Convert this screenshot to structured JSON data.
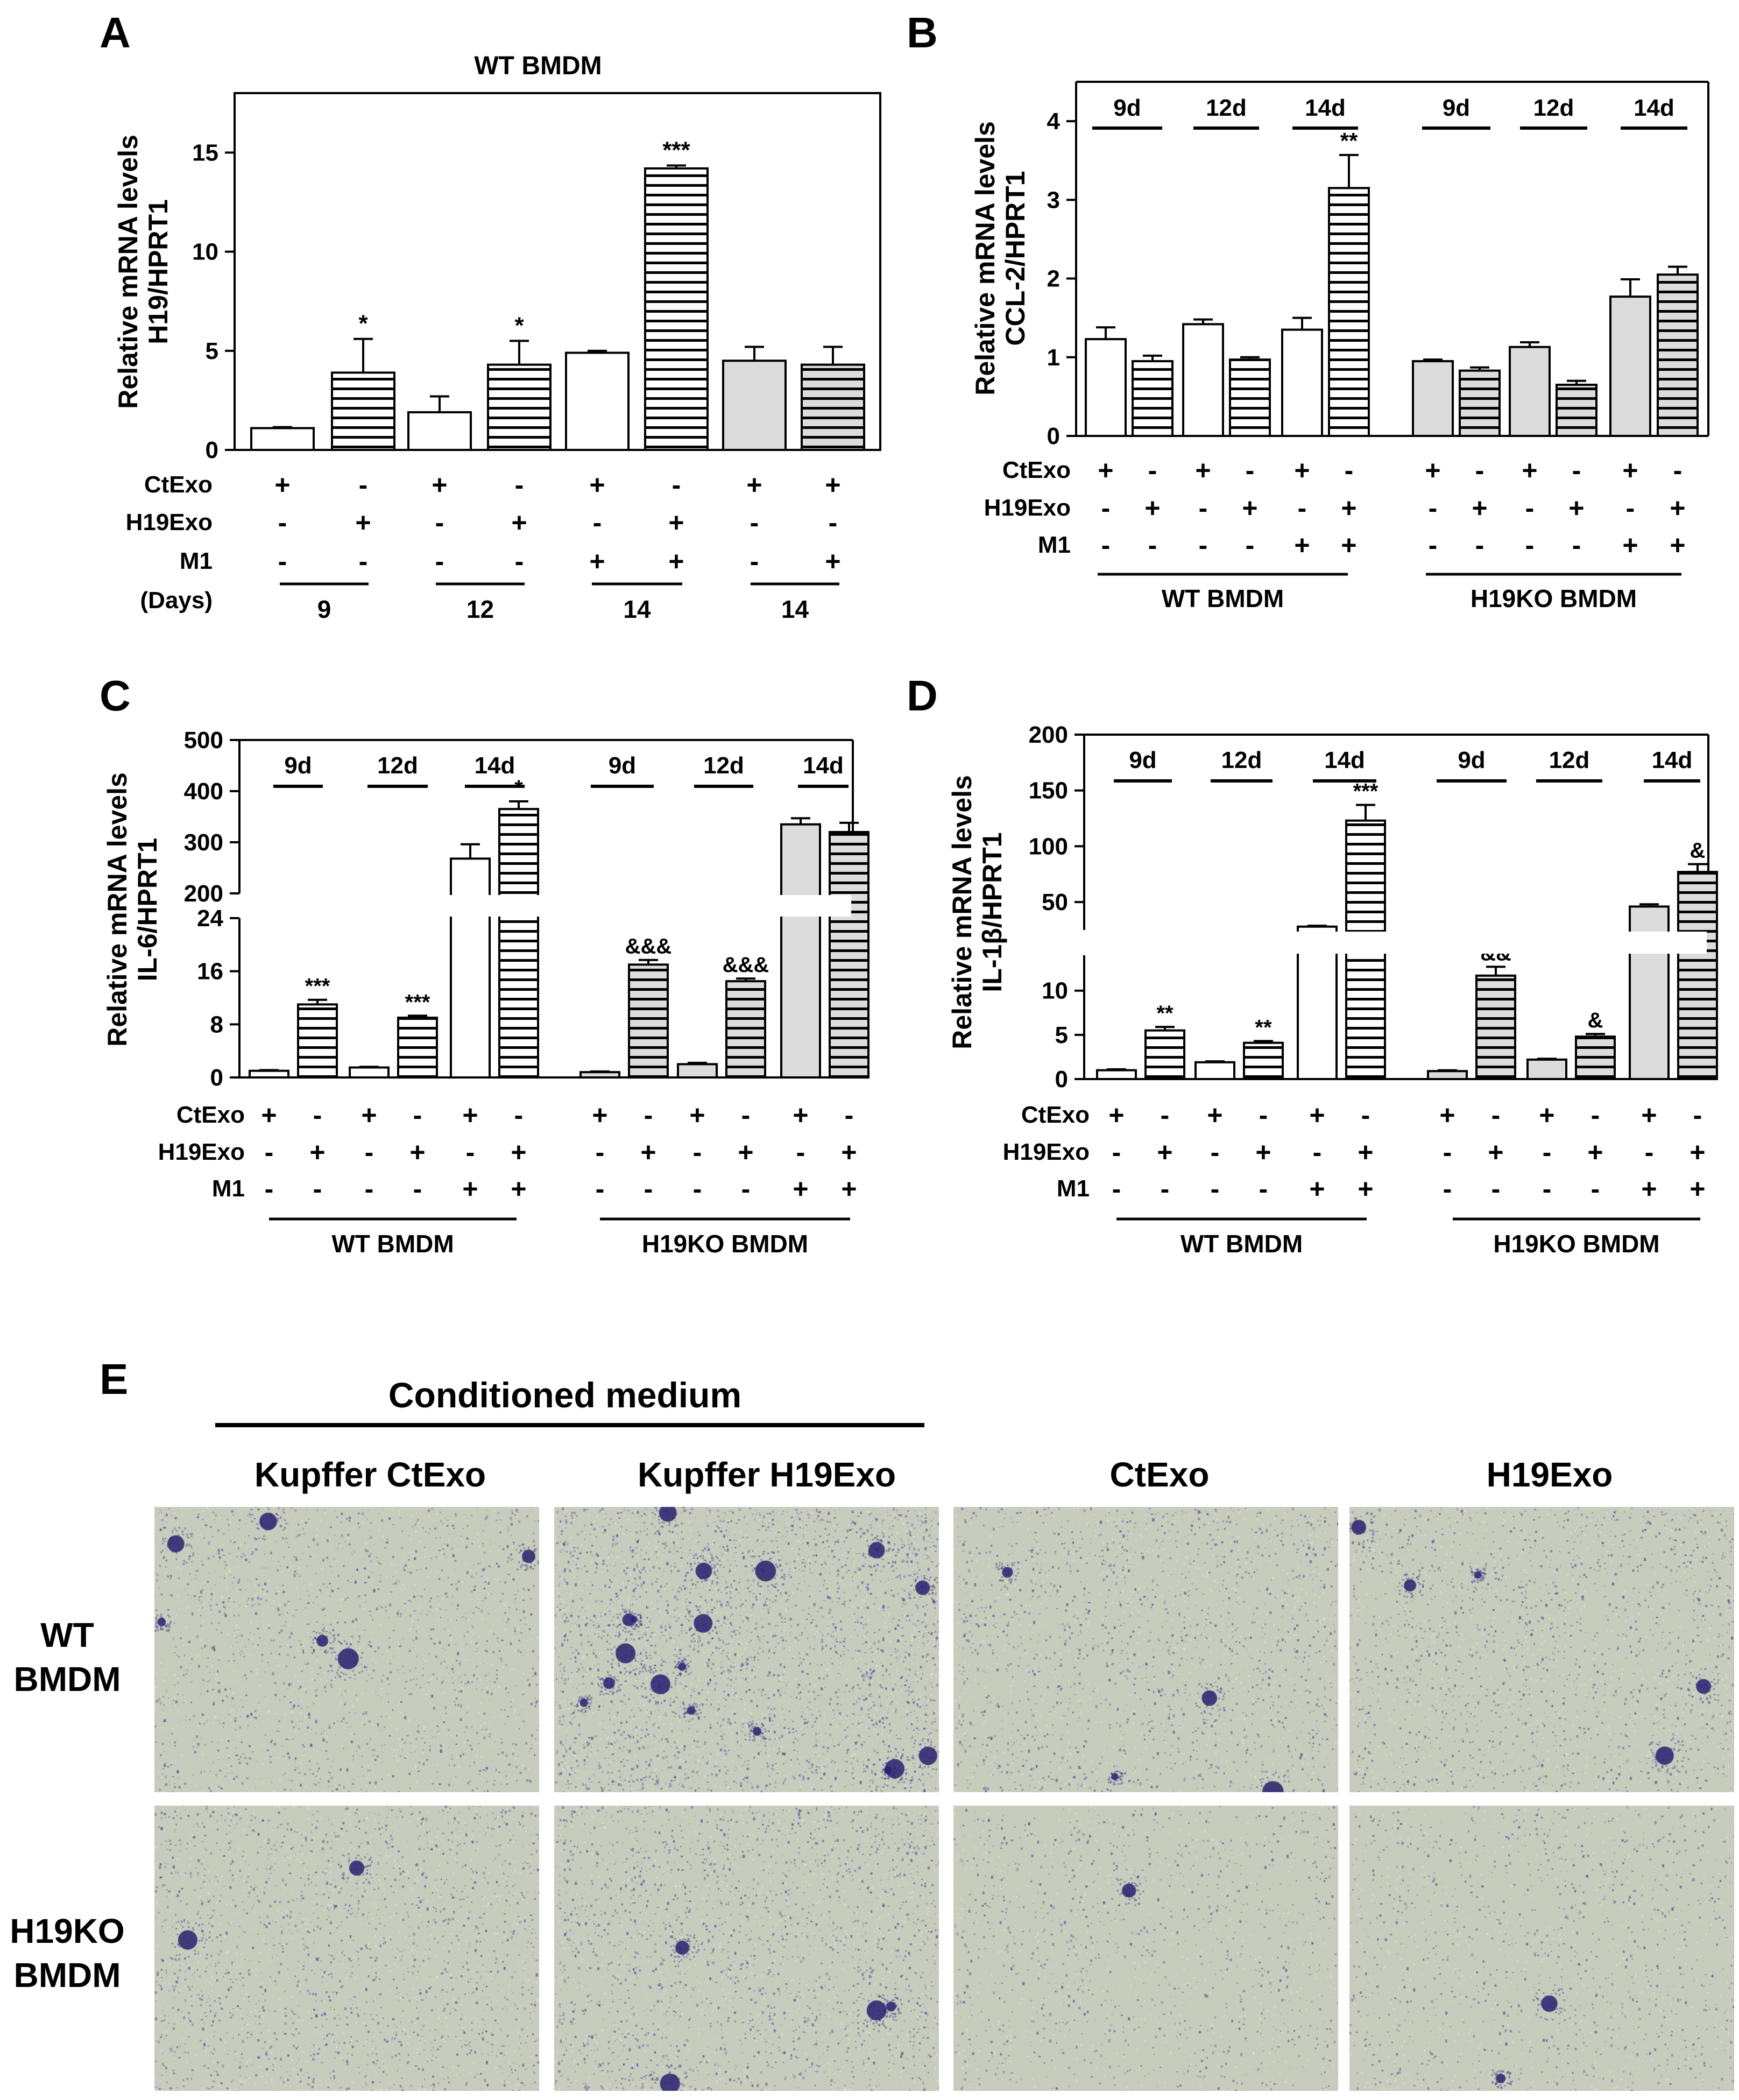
{
  "panels": [
    {
      "letter": "A",
      "title": "WT BMDM",
      "ylabel_lines": [
        "Relative mRNA levels",
        "H19/HPRT1"
      ],
      "rows": [
        "CtExo",
        "H19Exo",
        "M1"
      ],
      "days_label": "(Days)",
      "groups": [
        {
          "label": "9"
        },
        {
          "label": "12"
        },
        {
          "label": "14"
        },
        {
          "label": "14"
        }
      ]
    },
    {
      "letter": "B",
      "ylabel_lines": [
        "Relative mRNA levels",
        "CCL-2/HPRT1"
      ],
      "rows": [
        "CtExo",
        "H19Exo",
        "M1"
      ],
      "day_labels": [
        "9d",
        "12d",
        "14d",
        "9d",
        "12d",
        "14d"
      ],
      "group_labels": [
        "WT BMDM",
        "H19KO BMDM"
      ]
    },
    {
      "letter": "C",
      "ylabel_lines": [
        "Relative mRNA levels",
        "IL-6/HPRT1"
      ],
      "rows": [
        "CtExo",
        "H19Exo",
        "M1"
      ],
      "day_labels": [
        "9d",
        "12d",
        "14d",
        "9d",
        "12d",
        "14d"
      ],
      "group_labels": [
        "WT BMDM",
        "H19KO BMDM"
      ]
    },
    {
      "letter": "D",
      "ylabel_lines": [
        "Relative mRNA levels",
        "IL-1β/HPRT1"
      ],
      "rows": [
        "CtExo",
        "H19Exo",
        "M1"
      ],
      "day_labels": [
        "9d",
        "12d",
        "14d",
        "9d",
        "12d",
        "14d"
      ],
      "group_labels": [
        "WT BMDM",
        "H19KO BMDM"
      ]
    }
  ],
  "panel_e": {
    "letter": "E",
    "header": "Conditioned medium",
    "columns": [
      "Kupffer CtExo",
      "Kupffer H19Exo",
      "CtExo",
      "H19Exo"
    ],
    "rows": [
      [
        "WT",
        "BMDM"
      ],
      [
        "H19KO",
        "BMDM"
      ]
    ],
    "stain_color": "#4a3f9a",
    "background_color": "#c8ccbc"
  },
  "chart_data": [
    {
      "type": "bar",
      "panel": "A",
      "title": "WT BMDM",
      "ylabel": "Relative mRNA levels H19/HPRT1",
      "ylim": [
        0,
        18
      ],
      "yticks": [
        0,
        5,
        10,
        15
      ],
      "bars": [
        {
          "value": 1.1,
          "error": 0.05,
          "CtExo": "+",
          "H19Exo": "-",
          "M1": "-",
          "days": "9",
          "fill": "white",
          "sig": ""
        },
        {
          "value": 3.9,
          "error": 1.7,
          "CtExo": "-",
          "H19Exo": "+",
          "M1": "-",
          "days": "9",
          "fill": "hatched",
          "sig": "*"
        },
        {
          "value": 1.9,
          "error": 0.8,
          "CtExo": "+",
          "H19Exo": "-",
          "M1": "-",
          "days": "12",
          "fill": "white",
          "sig": ""
        },
        {
          "value": 4.3,
          "error": 1.2,
          "CtExo": "-",
          "H19Exo": "+",
          "M1": "-",
          "days": "12",
          "fill": "hatched",
          "sig": "*"
        },
        {
          "value": 4.9,
          "error": 0.1,
          "CtExo": "+",
          "H19Exo": "-",
          "M1": "+",
          "days": "14",
          "fill": "white",
          "sig": ""
        },
        {
          "value": 14.2,
          "error": 0.15,
          "CtExo": "-",
          "H19Exo": "+",
          "M1": "+",
          "days": "14",
          "fill": "hatched",
          "sig": "***"
        },
        {
          "value": 4.5,
          "error": 0.7,
          "CtExo": "+",
          "H19Exo": "-",
          "M1": "-",
          "days": "14",
          "fill": "gray",
          "sig": ""
        },
        {
          "value": 4.3,
          "error": 0.9,
          "CtExo": "+",
          "H19Exo": "-",
          "M1": "+",
          "days": "14",
          "fill": "gray-hatched",
          "sig": ""
        }
      ]
    },
    {
      "type": "bar",
      "panel": "B",
      "ylabel": "Relative mRNA levels CCL-2/HPRT1",
      "ylim": [
        0,
        4.5
      ],
      "yticks": [
        0,
        1,
        2,
        3,
        4
      ],
      "bars": [
        {
          "value": 1.23,
          "error": 0.15,
          "CtExo": "+",
          "H19Exo": "-",
          "M1": "-",
          "group": "WT BMDM",
          "fill": "white",
          "sig": ""
        },
        {
          "value": 0.95,
          "error": 0.07,
          "CtExo": "-",
          "H19Exo": "+",
          "M1": "-",
          "group": "WT BMDM",
          "fill": "hatched",
          "sig": ""
        },
        {
          "value": 1.42,
          "error": 0.06,
          "CtExo": "+",
          "H19Exo": "-",
          "M1": "-",
          "group": "WT BMDM",
          "fill": "white",
          "sig": ""
        },
        {
          "value": 0.97,
          "error": 0.03,
          "CtExo": "-",
          "H19Exo": "+",
          "M1": "-",
          "group": "WT BMDM",
          "fill": "hatched",
          "sig": ""
        },
        {
          "value": 1.35,
          "error": 0.15,
          "CtExo": "+",
          "H19Exo": "-",
          "M1": "+",
          "group": "WT BMDM",
          "fill": "white",
          "sig": ""
        },
        {
          "value": 3.15,
          "error": 0.42,
          "CtExo": "-",
          "H19Exo": "+",
          "M1": "+",
          "group": "WT BMDM",
          "fill": "hatched",
          "sig": "**"
        },
        {
          "value": 0.95,
          "error": 0.02,
          "CtExo": "+",
          "H19Exo": "-",
          "M1": "-",
          "group": "H19KO BMDM",
          "fill": "gray",
          "sig": ""
        },
        {
          "value": 0.83,
          "error": 0.04,
          "CtExo": "-",
          "H19Exo": "+",
          "M1": "-",
          "group": "H19KO BMDM",
          "fill": "gray-hatched",
          "sig": ""
        },
        {
          "value": 1.13,
          "error": 0.06,
          "CtExo": "+",
          "H19Exo": "-",
          "M1": "-",
          "group": "H19KO BMDM",
          "fill": "gray",
          "sig": ""
        },
        {
          "value": 0.65,
          "error": 0.05,
          "CtExo": "-",
          "H19Exo": "+",
          "M1": "-",
          "group": "H19KO BMDM",
          "fill": "gray-hatched",
          "sig": ""
        },
        {
          "value": 1.77,
          "error": 0.22,
          "CtExo": "+",
          "H19Exo": "-",
          "M1": "+",
          "group": "H19KO BMDM",
          "fill": "gray",
          "sig": ""
        },
        {
          "value": 2.05,
          "error": 0.1,
          "CtExo": "-",
          "H19Exo": "+",
          "M1": "+",
          "group": "H19KO BMDM",
          "fill": "gray-hatched",
          "sig": ""
        }
      ]
    },
    {
      "type": "bar",
      "panel": "C",
      "ylabel": "Relative mRNA levels IL-6/HPRT1",
      "axis_break": true,
      "lower_range": [
        0,
        24
      ],
      "upper_range": [
        200,
        500
      ],
      "yticks_lower": [
        0,
        8,
        16,
        24
      ],
      "yticks_upper": [
        200,
        300,
        400,
        500
      ],
      "bars": [
        {
          "value": 1,
          "error": 0.1,
          "CtExo": "+",
          "H19Exo": "-",
          "M1": "-",
          "group": "WT BMDM",
          "fill": "white",
          "sig": ""
        },
        {
          "value": 11,
          "error": 0.7,
          "CtExo": "-",
          "H19Exo": "+",
          "M1": "-",
          "group": "WT BMDM",
          "fill": "hatched",
          "sig": "***"
        },
        {
          "value": 1.5,
          "error": 0.1,
          "CtExo": "+",
          "H19Exo": "-",
          "M1": "-",
          "group": "WT BMDM",
          "fill": "white",
          "sig": ""
        },
        {
          "value": 9,
          "error": 0.3,
          "CtExo": "-",
          "H19Exo": "+",
          "M1": "-",
          "group": "WT BMDM",
          "fill": "hatched",
          "sig": "***"
        },
        {
          "value": 268,
          "error": 28,
          "CtExo": "+",
          "H19Exo": "-",
          "M1": "+",
          "group": "WT BMDM",
          "fill": "white",
          "sig": ""
        },
        {
          "value": 365,
          "error": 15,
          "CtExo": "-",
          "H19Exo": "+",
          "M1": "+",
          "group": "WT BMDM",
          "fill": "hatched",
          "sig": "*"
        },
        {
          "value": 0.8,
          "error": 0.1,
          "CtExo": "+",
          "H19Exo": "-",
          "M1": "-",
          "group": "H19KO BMDM",
          "fill": "gray",
          "sig": ""
        },
        {
          "value": 17,
          "error": 0.7,
          "CtExo": "-",
          "H19Exo": "+",
          "M1": "-",
          "group": "H19KO BMDM",
          "fill": "gray-hatched",
          "sig": "&&&"
        },
        {
          "value": 2,
          "error": 0.2,
          "CtExo": "+",
          "H19Exo": "-",
          "M1": "-",
          "group": "H19KO BMDM",
          "fill": "gray",
          "sig": ""
        },
        {
          "value": 14.5,
          "error": 0.4,
          "CtExo": "-",
          "H19Exo": "+",
          "M1": "-",
          "group": "H19KO BMDM",
          "fill": "gray-hatched",
          "sig": "&&&"
        },
        {
          "value": 335,
          "error": 12,
          "CtExo": "+",
          "H19Exo": "-",
          "M1": "+",
          "group": "H19KO BMDM",
          "fill": "gray",
          "sig": ""
        },
        {
          "value": 320,
          "error": 18,
          "CtExo": "-",
          "H19Exo": "+",
          "M1": "+",
          "group": "H19KO BMDM",
          "fill": "gray-hatched",
          "sig": ""
        }
      ]
    },
    {
      "type": "bar",
      "panel": "D",
      "ylabel": "Relative mRNA levels IL-1β/HPRT1",
      "axis_break": true,
      "lower_range": [
        0,
        14
      ],
      "upper_range": [
        25,
        200
      ],
      "yticks_lower": [
        0,
        5,
        10
      ],
      "yticks_upper": [
        50,
        100,
        150,
        200
      ],
      "bars": [
        {
          "value": 1,
          "error": 0.1,
          "CtExo": "+",
          "H19Exo": "-",
          "M1": "-",
          "group": "WT BMDM",
          "fill": "white",
          "sig": ""
        },
        {
          "value": 5.5,
          "error": 0.4,
          "CtExo": "-",
          "H19Exo": "+",
          "M1": "-",
          "group": "WT BMDM",
          "fill": "hatched",
          "sig": "**"
        },
        {
          "value": 1.9,
          "error": 0.1,
          "CtExo": "+",
          "H19Exo": "-",
          "M1": "-",
          "group": "WT BMDM",
          "fill": "white",
          "sig": ""
        },
        {
          "value": 4.1,
          "error": 0.2,
          "CtExo": "-",
          "H19Exo": "+",
          "M1": "-",
          "group": "WT BMDM",
          "fill": "hatched",
          "sig": "**"
        },
        {
          "value": 28,
          "error": 0.8,
          "CtExo": "+",
          "H19Exo": "-",
          "M1": "+",
          "group": "WT BMDM",
          "fill": "white",
          "sig": ""
        },
        {
          "value": 123,
          "error": 14,
          "CtExo": "-",
          "H19Exo": "+",
          "M1": "+",
          "group": "WT BMDM",
          "fill": "hatched",
          "sig": "***"
        },
        {
          "value": 0.9,
          "error": 0.1,
          "CtExo": "+",
          "H19Exo": "-",
          "M1": "-",
          "group": "H19KO BMDM",
          "fill": "gray",
          "sig": ""
        },
        {
          "value": 11.7,
          "error": 1.0,
          "CtExo": "-",
          "H19Exo": "+",
          "M1": "-",
          "group": "H19KO BMDM",
          "fill": "gray-hatched",
          "sig": "&&"
        },
        {
          "value": 2.2,
          "error": 0.1,
          "CtExo": "+",
          "H19Exo": "-",
          "M1": "-",
          "group": "H19KO BMDM",
          "fill": "gray",
          "sig": ""
        },
        {
          "value": 4.8,
          "error": 0.3,
          "CtExo": "-",
          "H19Exo": "+",
          "M1": "-",
          "group": "H19KO BMDM",
          "fill": "gray-hatched",
          "sig": "&"
        },
        {
          "value": 46,
          "error": 2,
          "CtExo": "+",
          "H19Exo": "-",
          "M1": "+",
          "group": "H19KO BMDM",
          "fill": "gray",
          "sig": ""
        },
        {
          "value": 77,
          "error": 7,
          "CtExo": "-",
          "H19Exo": "+",
          "M1": "+",
          "group": "H19KO BMDM",
          "fill": "gray-hatched",
          "sig": "&"
        }
      ]
    }
  ]
}
